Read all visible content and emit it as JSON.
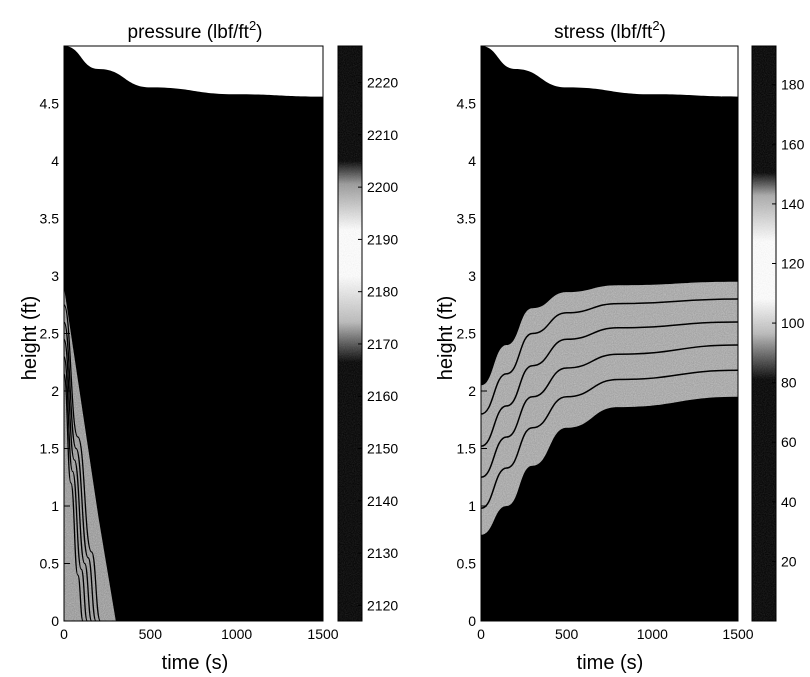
{
  "chart_data": [
    {
      "type": "heatmap",
      "title": "pressure (lbf/ft",
      "title_sup": "2",
      "title_close": ")",
      "xlabel": "time (s)",
      "ylabel": "height (ft)",
      "xlim": [
        0,
        1500
      ],
      "ylim": [
        0,
        5
      ],
      "x_ticks": [
        0,
        500,
        1000,
        1500
      ],
      "x_tick_labels": [
        "0",
        "500",
        "1000",
        "1500"
      ],
      "y_ticks": [
        0,
        0.5,
        1,
        1.5,
        2,
        2.5,
        3,
        3.5,
        4,
        4.5
      ],
      "y_tick_labels": [
        "0",
        "0.5",
        "1",
        "1.5",
        "2",
        "2.5",
        "3",
        "3.5",
        "4",
        "4.5"
      ],
      "colorbar": {
        "range": [
          2117,
          2227
        ],
        "ticks": [
          2120,
          2130,
          2140,
          2150,
          2160,
          2170,
          2180,
          2190,
          2200,
          2210,
          2220
        ],
        "tick_labels": [
          "2120",
          "2130",
          "2140",
          "2150",
          "2160",
          "2170",
          "2180",
          "2190",
          "2200",
          "2210",
          "2220"
        ],
        "light_band": [
          2167,
          2198
        ]
      },
      "top_boundary": {
        "description_points": [
          [
            0,
            5.0
          ],
          [
            200,
            4.8
          ],
          [
            500,
            4.64
          ],
          [
            1000,
            4.58
          ],
          [
            1500,
            4.56
          ]
        ]
      },
      "contours": [
        {
          "points": [
            [
              0,
              2.75
            ],
            [
              80,
              1.6
            ],
            [
              160,
              0.6
            ],
            [
              210,
              0
            ]
          ]
        },
        {
          "points": [
            [
              0,
              2.6
            ],
            [
              70,
              1.5
            ],
            [
              140,
              0.55
            ],
            [
              185,
              0
            ]
          ]
        },
        {
          "points": [
            [
              0,
              2.45
            ],
            [
              60,
              1.4
            ],
            [
              120,
              0.5
            ],
            [
              160,
              0
            ]
          ]
        },
        {
          "points": [
            [
              0,
              2.3
            ],
            [
              50,
              1.3
            ],
            [
              100,
              0.45
            ],
            [
              135,
              0
            ]
          ]
        },
        {
          "points": [
            [
              0,
              2.15
            ],
            [
              40,
              1.2
            ],
            [
              80,
              0.4
            ],
            [
              110,
              0
            ]
          ]
        }
      ],
      "light_region": [
        [
          0,
          2.9
        ],
        [
          200,
          0.9
        ],
        [
          300,
          0
        ],
        [
          0,
          0
        ]
      ]
    },
    {
      "type": "heatmap",
      "title": "stress (lbf/ft",
      "title_sup": "2",
      "title_close": ")",
      "xlabel": "time (s)",
      "ylabel": "height (ft)",
      "xlim": [
        0,
        1500
      ],
      "ylim": [
        0,
        5
      ],
      "x_ticks": [
        0,
        500,
        1000,
        1500
      ],
      "x_tick_labels": [
        "0",
        "500",
        "1000",
        "1500"
      ],
      "y_ticks": [
        0,
        0.5,
        1,
        1.5,
        2,
        2.5,
        3,
        3.5,
        4,
        4.5
      ],
      "y_tick_labels": [
        "0",
        "0.5",
        "1",
        "1.5",
        "2",
        "2.5",
        "3",
        "3.5",
        "4",
        "4.5"
      ],
      "colorbar": {
        "range": [
          0,
          193
        ],
        "ticks": [
          20,
          40,
          60,
          80,
          100,
          120,
          140,
          160,
          180
        ],
        "tick_labels": [
          "20",
          "40",
          "60",
          "80",
          "100",
          "120",
          "140",
          "160",
          "180"
        ],
        "light_band": [
          88,
          148
        ]
      },
      "top_boundary": {
        "description_points": [
          [
            0,
            5.0
          ],
          [
            200,
            4.8
          ],
          [
            500,
            4.64
          ],
          [
            1000,
            4.58
          ],
          [
            1500,
            4.56
          ]
        ]
      },
      "band_upper": [
        [
          0,
          2.05
        ],
        [
          150,
          2.4
        ],
        [
          300,
          2.72
        ],
        [
          500,
          2.86
        ],
        [
          800,
          2.92
        ],
        [
          1500,
          2.95
        ]
      ],
      "band_lower": [
        [
          0,
          0.75
        ],
        [
          150,
          1.0
        ],
        [
          300,
          1.35
        ],
        [
          500,
          1.68
        ],
        [
          800,
          1.86
        ],
        [
          1500,
          1.95
        ]
      ],
      "contours": [
        {
          "points": [
            [
              0,
              1.8
            ],
            [
              150,
              2.15
            ],
            [
              300,
              2.5
            ],
            [
              500,
              2.68
            ],
            [
              800,
              2.76
            ],
            [
              1500,
              2.8
            ]
          ]
        },
        {
          "points": [
            [
              0,
              1.52
            ],
            [
              150,
              1.87
            ],
            [
              300,
              2.22
            ],
            [
              500,
              2.45
            ],
            [
              800,
              2.55
            ],
            [
              1500,
              2.6
            ]
          ]
        },
        {
          "points": [
            [
              0,
              1.25
            ],
            [
              150,
              1.6
            ],
            [
              300,
              1.95
            ],
            [
              500,
              2.2
            ],
            [
              800,
              2.32
            ],
            [
              1500,
              2.4
            ]
          ]
        },
        {
          "points": [
            [
              0,
              0.98
            ],
            [
              150,
              1.33
            ],
            [
              300,
              1.68
            ],
            [
              500,
              1.95
            ],
            [
              800,
              2.1
            ],
            [
              1500,
              2.18
            ]
          ]
        }
      ]
    }
  ]
}
